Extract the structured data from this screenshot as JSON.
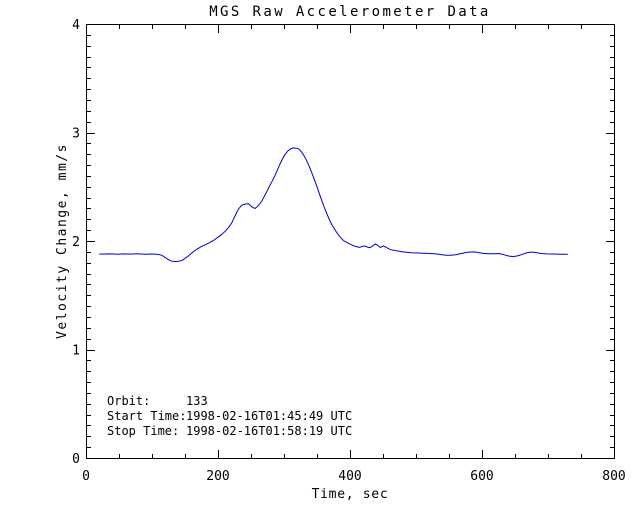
{
  "chart_data": {
    "type": "line",
    "title": "MGS Raw Accelerometer Data",
    "xlabel": "Time, sec",
    "ylabel": "Velocity Change, mm/s",
    "xlim": [
      0,
      800
    ],
    "ylim": [
      0,
      4
    ],
    "x_major_ticks": [
      0,
      200,
      400,
      600,
      800
    ],
    "x_minor_step": 50,
    "y_major_ticks": [
      0,
      1,
      2,
      3,
      4
    ],
    "y_minor_step": 0.1,
    "grid": false,
    "legend": "none",
    "background_color": "#ffffff",
    "axis_color": "#000000",
    "line_color": "#0000cd",
    "series": [
      {
        "name": "Velocity Change",
        "x": [
          20,
          27,
          34,
          41,
          48,
          55,
          62,
          69,
          76,
          83,
          90,
          97,
          104,
          110,
          115,
          120,
          125,
          130,
          135,
          140,
          145,
          150,
          155,
          160,
          165,
          170,
          175,
          181,
          187,
          193,
          199,
          205,
          211,
          216,
          221,
          226,
          231,
          236,
          241,
          246,
          251,
          256,
          261,
          266,
          270,
          274,
          278,
          282,
          286,
          290,
          294,
          298,
          302,
          306,
          310,
          314,
          318,
          322,
          326,
          330,
          334,
          338,
          342,
          346,
          350,
          354,
          358,
          362,
          366,
          370,
          374,
          378,
          382,
          386,
          390,
          394,
          398,
          402,
          406,
          410,
          414,
          418,
          422,
          426,
          430,
          434,
          438,
          442,
          446,
          450,
          454,
          458,
          462,
          466,
          470,
          475,
          480,
          486,
          492,
          498,
          504,
          511,
          518,
          525,
          532,
          539,
          546,
          553,
          560,
          567,
          574,
          581,
          588,
          595,
          602,
          610,
          618,
          626,
          633,
          640,
          647,
          654,
          661,
          668,
          675,
          682,
          690,
          698,
          706,
          714,
          722,
          730
        ],
        "y": [
          1.88,
          1.879,
          1.881,
          1.88,
          1.878,
          1.881,
          1.88,
          1.879,
          1.882,
          1.88,
          1.878,
          1.88,
          1.879,
          1.876,
          1.868,
          1.848,
          1.828,
          1.814,
          1.81,
          1.813,
          1.82,
          1.84,
          1.862,
          1.888,
          1.912,
          1.932,
          1.95,
          1.966,
          1.984,
          2.005,
          2.03,
          2.058,
          2.09,
          2.125,
          2.17,
          2.235,
          2.295,
          2.33,
          2.34,
          2.345,
          2.315,
          2.3,
          2.325,
          2.365,
          2.41,
          2.455,
          2.505,
          2.55,
          2.6,
          2.655,
          2.71,
          2.76,
          2.8,
          2.83,
          2.85,
          2.858,
          2.855,
          2.85,
          2.825,
          2.79,
          2.745,
          2.69,
          2.63,
          2.565,
          2.5,
          2.43,
          2.36,
          2.295,
          2.235,
          2.18,
          2.135,
          2.095,
          2.06,
          2.03,
          2.005,
          1.99,
          1.978,
          1.966,
          1.955,
          1.948,
          1.942,
          1.948,
          1.955,
          1.945,
          1.938,
          1.952,
          1.972,
          1.96,
          1.94,
          1.955,
          1.945,
          1.93,
          1.92,
          1.915,
          1.91,
          1.905,
          1.9,
          1.896,
          1.892,
          1.89,
          1.889,
          1.888,
          1.886,
          1.884,
          1.88,
          1.874,
          1.869,
          1.868,
          1.874,
          1.883,
          1.892,
          1.899,
          1.9,
          1.893,
          1.886,
          1.882,
          1.883,
          1.885,
          1.874,
          1.862,
          1.856,
          1.863,
          1.877,
          1.892,
          1.899,
          1.893,
          1.885,
          1.881,
          1.88,
          1.879,
          1.878,
          1.877
        ]
      }
    ],
    "annotations": [
      {
        "label": "Orbit:",
        "value": "133"
      },
      {
        "label": "Start Time:",
        "value": "1998-02-16T01:45:49 UTC"
      },
      {
        "label": "Stop Time:",
        "value": "1998-02-16T01:58:19 UTC"
      }
    ]
  }
}
